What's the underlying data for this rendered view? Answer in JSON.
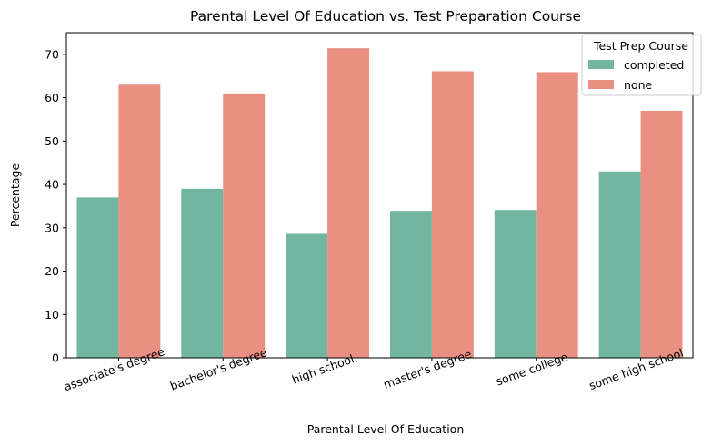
{
  "chart_data": {
    "type": "bar",
    "title": "Parental Level Of Education vs. Test Preparation Course",
    "xlabel": "Parental Level Of Education",
    "ylabel": "Percentage",
    "categories": [
      "associate's degree",
      "bachelor's degree",
      "high school",
      "master's degree",
      "some college",
      "some high school"
    ],
    "series": [
      {
        "name": "completed",
        "color": "#72b6a1",
        "values": [
          37.0,
          39.0,
          28.6,
          33.9,
          34.1,
          43.0
        ]
      },
      {
        "name": "none",
        "color": "#e99083",
        "values": [
          63.0,
          61.0,
          71.4,
          66.1,
          65.9,
          57.0
        ]
      }
    ],
    "ylim": [
      0,
      75
    ],
    "yticks": [
      0,
      10,
      20,
      30,
      40,
      50,
      60,
      70
    ],
    "grid": false,
    "legend": {
      "title": "Test Prep Course",
      "position": "top-right"
    }
  }
}
